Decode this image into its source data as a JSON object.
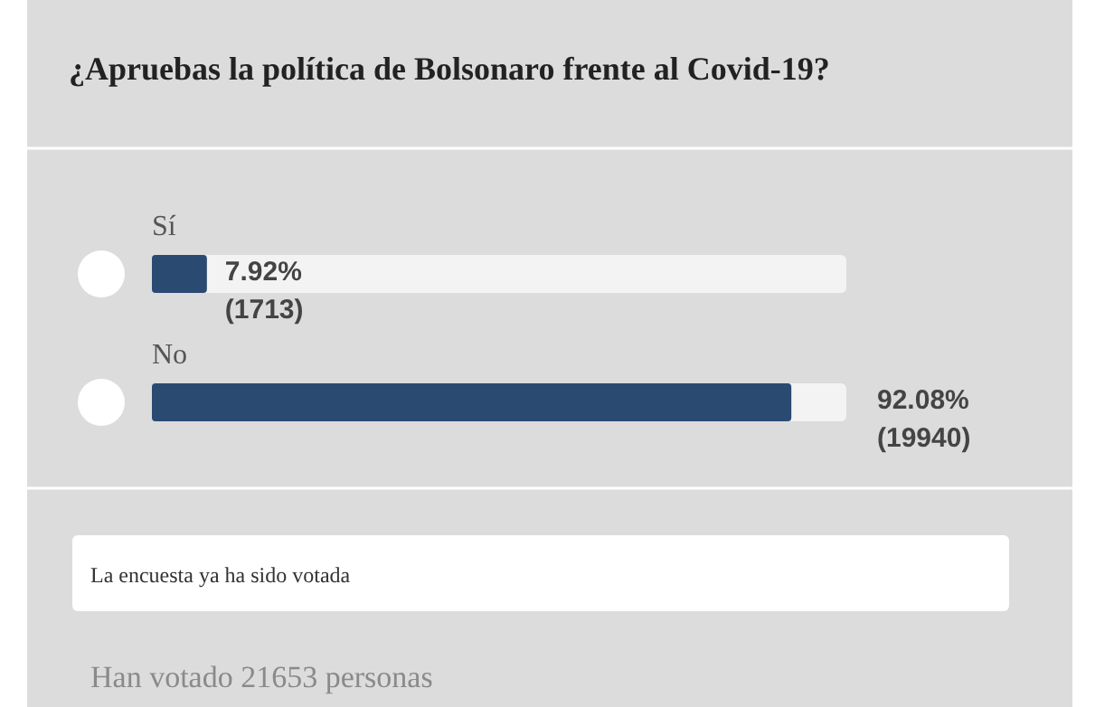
{
  "chart_data": {
    "type": "bar",
    "orientation": "horizontal",
    "title": "¿Apruebas la política de Bolsonaro frente al Covid-19?",
    "categories": [
      "Sí",
      "No"
    ],
    "values": [
      7.92,
      92.08
    ],
    "color": "#2b4a72",
    "value_labels": [
      "7.92% (1713)",
      "92.08% (19940)"
    ],
    "xlim": [
      0,
      100
    ],
    "tick_labels": "y",
    "annotations": [
      "La encuesta ya ha sido votada",
      "Han votado 21653 personas"
    ]
  }
}
